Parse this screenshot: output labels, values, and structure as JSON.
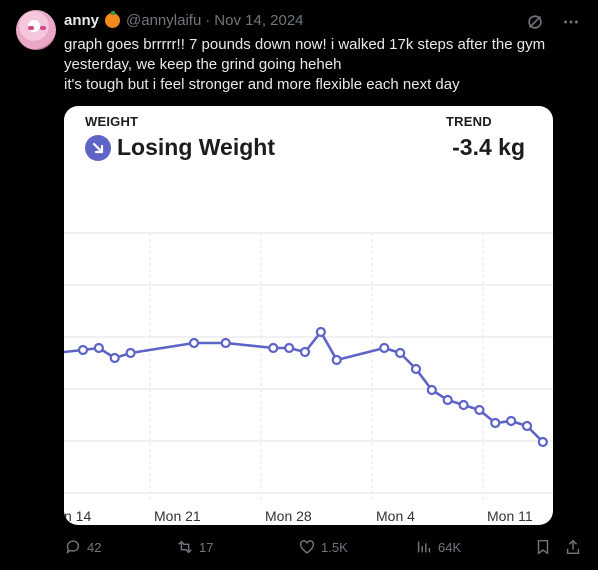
{
  "tweet": {
    "display_name": "anny",
    "handle": "@annylaifu",
    "separator": "·",
    "date": "Nov 14, 2024",
    "text": "graph goes brrrrr!! 7 pounds down now! i walked 17k steps after the gym\nyesterday, we keep the grind going heheh\nit's tough but i feel stronger and more flexible each next day"
  },
  "card": {
    "weight_label": "WEIGHT",
    "status": "Losing Weight",
    "trend_label": "TREND",
    "trend_value": "-3.4 kg",
    "accent": "#5d64c6"
  },
  "chart_data": {
    "type": "line",
    "x_tick_labels": [
      "n 14",
      "Mon 21",
      "Mon 28",
      "Mon 4",
      "Mon 11"
    ],
    "x": [
      13,
      14,
      15,
      16,
      20,
      22,
      25,
      26,
      27,
      28,
      29,
      32,
      33,
      34,
      35,
      36,
      37,
      38,
      39,
      40,
      41,
      42
    ],
    "y": [
      350,
      348,
      358,
      353,
      343,
      343,
      348,
      348,
      352,
      332,
      360,
      348,
      353,
      369,
      390,
      400,
      405,
      410,
      423,
      421,
      426,
      442
    ],
    "y_axis": "inverted screen-value proxy (no printed y ticks)",
    "grid": true,
    "color": "#5d64c6"
  },
  "actions": {
    "replies": "42",
    "reposts": "17",
    "likes": "1.5K",
    "views": "64K"
  },
  "colors": {
    "background": "#000000",
    "muted": "#71767b",
    "text": "#e7e9ea"
  }
}
